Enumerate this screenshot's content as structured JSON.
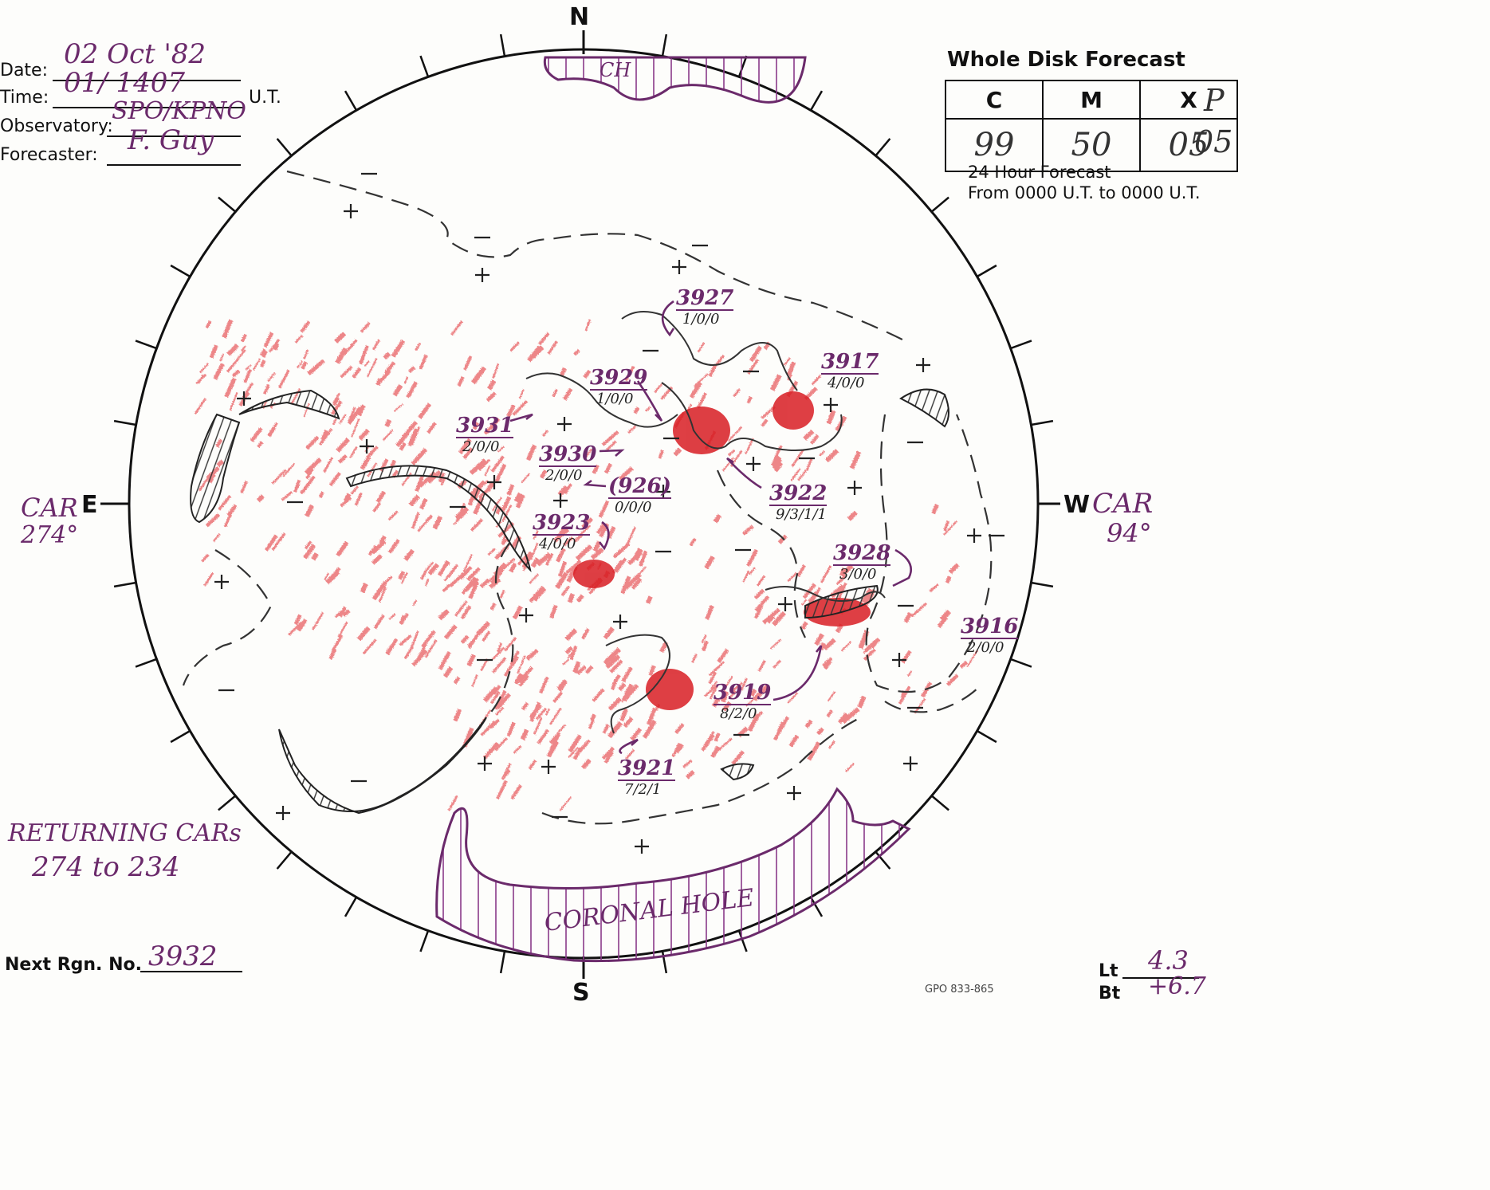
{
  "header": {
    "date_label": "Date:",
    "date_value": "02 Oct '82",
    "time_label": "Time:",
    "time_value": "01/ 1407",
    "time_unit": "U.T.",
    "observatory_label": "Observatory:",
    "observatory_value": "SPO/KPNO",
    "forecaster_label": "Forecaster:",
    "forecaster_value": "F. Guy"
  },
  "forecast": {
    "title": "Whole Disk Forecast",
    "columns": [
      "C",
      "M",
      "X"
    ],
    "values": [
      "99",
      "50",
      "05"
    ],
    "p_label": "P",
    "p_value": "05",
    "note_line1": "24 Hour Forecast",
    "note_line2": "From 0000 U.T. to 0000 U.T."
  },
  "compass": {
    "n": "N",
    "s": "S",
    "e": "E",
    "w": "W"
  },
  "car_east": {
    "label": "CAR",
    "value": "274°"
  },
  "car_west": {
    "label": "CAR",
    "value": "94°"
  },
  "coronal_hole_north": "CH",
  "coronal_hole_south": "CORONAL HOLE",
  "regions": [
    {
      "number": "3927",
      "class": "1/0/0"
    },
    {
      "number": "3917",
      "class": "4/0/0"
    },
    {
      "number": "3929",
      "class": "1/0/0"
    },
    {
      "number": "3931",
      "class": "2/0/0"
    },
    {
      "number": "3930",
      "class": "2/0/0"
    },
    {
      "number": "(926)",
      "class": "0/0/0"
    },
    {
      "number": "3923",
      "class": "4/0/0"
    },
    {
      "number": "3922",
      "class": "9/3/1/1"
    },
    {
      "number": "3928",
      "class": "3/0/0"
    },
    {
      "number": "3916",
      "class": "2/0/0"
    },
    {
      "number": "3919",
      "class": "8/2/0"
    },
    {
      "number": "3921",
      "class": "7/2/1"
    }
  ],
  "returning": {
    "line1": "RETURNING CARs",
    "line2": "274 to 234"
  },
  "next_region": {
    "label": "Next Rgn. No.",
    "value": "3932"
  },
  "lt": {
    "label": "Lt",
    "value": "4.3"
  },
  "bt": {
    "label": "Bt",
    "value": "+6.7"
  },
  "form_code": "GPO 833-865",
  "colors": {
    "ink": "#111111",
    "annotation": "#6b2a6b",
    "plage": "#e0262b",
    "hatch": "#8a3a8a"
  }
}
